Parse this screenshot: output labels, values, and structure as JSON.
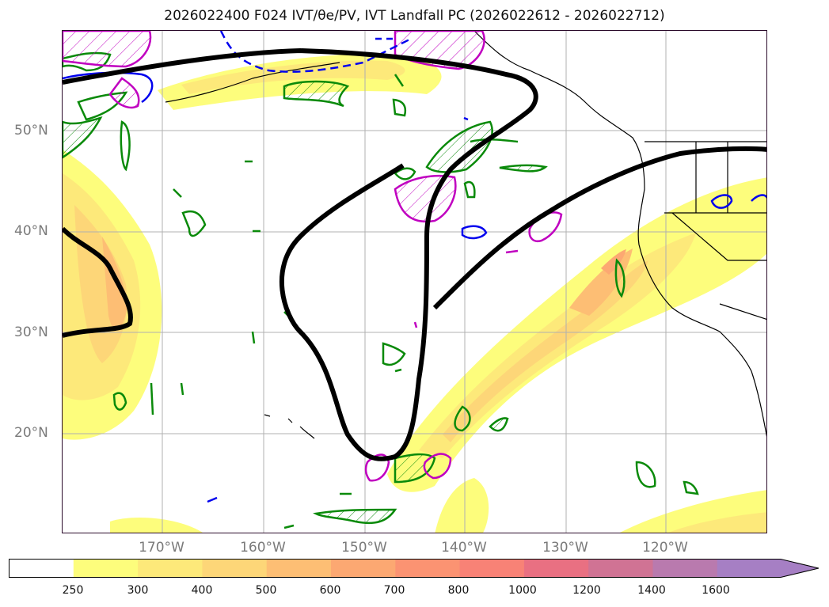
{
  "title": "2026022400 F024 IVT/θe/PV, IVT Landfall PC (2026022612 - 2026022712)",
  "map": {
    "lat_labels": [
      "50°N",
      "40°N",
      "30°N",
      "20°N"
    ],
    "lon_labels": [
      "170°W",
      "160°W",
      "150°W",
      "140°W",
      "130°W",
      "120°W"
    ]
  },
  "colorbar": {
    "levels": [
      "250",
      "300",
      "400",
      "500",
      "600",
      "700",
      "800",
      "1000",
      "1200",
      "1400",
      "1600"
    ],
    "colors": [
      "#ffffff",
      "#fdfd7c",
      "#fde97a",
      "#fdd678",
      "#fdbe74",
      "#fca872",
      "#fb9372",
      "#f88276",
      "#e97082",
      "#d07394",
      "#b97aae",
      "#a67fc4"
    ],
    "extend": "max"
  },
  "colors": {
    "contour_black": "#000000",
    "theta_green": "#0a8a0a",
    "pv_magenta": "#c000c0",
    "pv_blue": "#0000ee",
    "coast": "#000000",
    "grid": "#b0b0b0"
  }
}
